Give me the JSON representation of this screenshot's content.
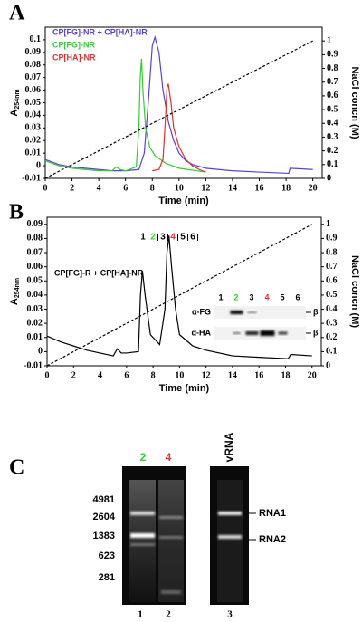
{
  "chart_data": [
    {
      "type": "line",
      "panel": "A",
      "xlabel": "Time (min)",
      "ylabel_main": "A",
      "ylabel_sub": "254nm",
      "y2label": "NaCl concn (M)",
      "xlim": [
        0,
        20.7
      ],
      "xticks": [
        0,
        2,
        4,
        6,
        8,
        10,
        12,
        14,
        16,
        18,
        20
      ],
      "ylim": [
        -0.01,
        0.11
      ],
      "yticks": [
        -0.01,
        0,
        0.01,
        0.02,
        0.03,
        0.04,
        0.05,
        0.06,
        0.07,
        0.08,
        0.09,
        0.1
      ],
      "y2lim": [
        0,
        1.1
      ],
      "y2ticks": [
        0,
        0.1,
        0.2,
        0.3,
        0.4,
        0.5,
        0.6,
        0.7,
        0.8,
        0.9,
        1
      ],
      "series": [
        {
          "name": "CP[FG]-NR + CP[HA]-NR",
          "color": "#5b3fd8",
          "x": [
            0,
            0.5,
            1,
            1.5,
            2,
            3,
            4,
            5,
            6,
            7,
            7.4,
            7.7,
            8,
            8.2,
            8.5,
            8.8,
            9.2,
            9.6,
            10,
            10.5,
            11,
            12,
            14,
            16,
            18.2,
            18.3,
            20
          ],
          "values": [
            0.005,
            0.003,
            0.001,
            0,
            -0.001,
            -0.002,
            -0.003,
            -0.004,
            -0.004,
            -0.003,
            0.01,
            0.05,
            0.095,
            0.102,
            0.09,
            0.06,
            0.035,
            0.02,
            0.01,
            0.004,
            0.001,
            -0.002,
            -0.004,
            -0.005,
            -0.006,
            -0.002,
            -0.003
          ]
        },
        {
          "name": "CP[FG]-NR",
          "color": "#33cc33",
          "x": [
            0,
            1,
            2,
            4,
            5,
            5.3,
            5.6,
            6,
            6.8,
            7,
            7.1,
            7.2,
            7.3,
            7.5,
            7.8,
            8.2,
            9,
            10,
            12
          ],
          "values": [
            0.004,
            0,
            -0.002,
            -0.004,
            -0.004,
            -0.001,
            -0.003,
            -0.004,
            -0.001,
            0.03,
            0.07,
            0.085,
            0.06,
            0.03,
            0.015,
            0.008,
            0.002,
            -0.002,
            -0.005
          ]
        },
        {
          "name": "CP[HA]-NR",
          "color": "#e03030",
          "x": [
            8,
            8.5,
            8.8,
            9,
            9.1,
            9.2,
            9.4,
            9.6,
            10,
            10.5,
            11,
            11.5,
            12
          ],
          "values": [
            -0.004,
            -0.003,
            0.005,
            0.04,
            0.062,
            0.065,
            0.05,
            0.03,
            0.015,
            0.005,
            0,
            -0.003,
            -0.005
          ]
        },
        {
          "color": "#000000",
          "dash": true,
          "axis": "y2",
          "x": [
            0,
            20
          ],
          "values": [
            0,
            1
          ]
        }
      ]
    },
    {
      "type": "line",
      "panel": "B",
      "xlabel": "Time (min)",
      "ylabel_main": "A",
      "ylabel_sub": "254nm",
      "y2label": "NaCl concn (M)",
      "xlim": [
        0,
        20.7
      ],
      "xticks": [
        0,
        2,
        4,
        6,
        8,
        10,
        12,
        14,
        16,
        18,
        20
      ],
      "ylim": [
        -0.01,
        0.095
      ],
      "yticks": [
        -0.01,
        0,
        0.01,
        0.02,
        0.03,
        0.04,
        0.05,
        0.06,
        0.07,
        0.08,
        0.09
      ],
      "y2lim": [
        0,
        1.05
      ],
      "y2ticks": [
        0,
        0.1,
        0.2,
        0.3,
        0.4,
        0.5,
        0.6,
        0.7,
        0.8,
        0.9,
        1
      ],
      "fractions": {
        "labels": [
          "1",
          "2",
          "3",
          "4",
          "5",
          "6"
        ],
        "colors": [
          "#000000",
          "#33cc33",
          "#000000",
          "#e03030",
          "#000000",
          "#000000"
        ]
      },
      "inset": {
        "lanes": [
          "1",
          "2",
          "3",
          "4",
          "5",
          "6"
        ],
        "lane_colors": [
          "#000000",
          "#33cc33",
          "#000000",
          "#e03030",
          "#000000",
          "#000000"
        ],
        "rows": [
          "α-FG",
          "α-HA"
        ],
        "marker": "β"
      },
      "series": [
        {
          "name": "CP[FG]-R + CP[HA]-NR",
          "color": "#000000",
          "x": [
            0,
            1,
            2,
            3,
            4,
            5,
            5.3,
            5.6,
            6,
            6.9,
            7.05,
            7.2,
            7.4,
            7.8,
            8.5,
            8.9,
            9.05,
            9.2,
            9.4,
            9.7,
            10,
            11,
            12,
            14,
            16,
            18.2,
            18.4,
            20
          ],
          "values": [
            0.011,
            0.007,
            0.004,
            0.001,
            -0.001,
            -0.003,
            0.002,
            -0.001,
            -0.001,
            0,
            0.04,
            0.057,
            0.04,
            0.012,
            0.005,
            0.03,
            0.07,
            0.082,
            0.06,
            0.03,
            0.012,
            0.004,
            0.001,
            -0.003,
            -0.004,
            -0.005,
            -0.002,
            -0.003
          ]
        },
        {
          "color": "#000000",
          "dash": true,
          "axis": "y2",
          "x": [
            0,
            20
          ],
          "values": [
            0,
            1
          ]
        }
      ]
    }
  ],
  "panel_c": {
    "label": "C",
    "ladder": [
      "4981",
      "2604",
      "1383",
      "623",
      "281"
    ],
    "lane_top": [
      {
        "label": "2",
        "color": "#33cc33"
      },
      {
        "label": "4",
        "color": "#e03030"
      },
      {
        "label": "vRNA",
        "color": "#000000"
      }
    ],
    "lane_bottom": [
      "1",
      "2",
      "3"
    ],
    "bands": [
      "RNA1",
      "RNA2"
    ]
  }
}
